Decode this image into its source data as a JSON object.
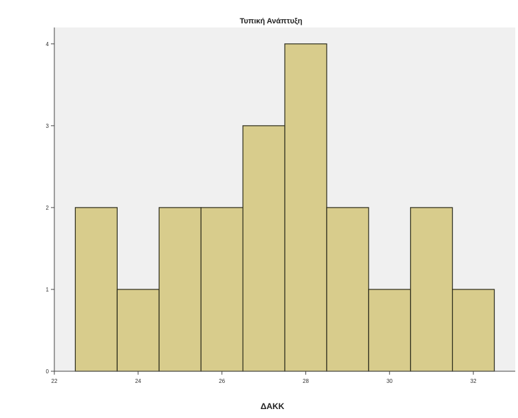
{
  "chart_data": {
    "type": "bar",
    "subtype": "histogram",
    "title": "Τυπική Ανάπτυξη",
    "xlabel": "ΔΑΚΚ",
    "ylabel": "",
    "xlim": [
      22,
      33
    ],
    "ylim": [
      0,
      4.2
    ],
    "x_ticks": [
      22,
      24,
      26,
      28,
      30,
      32
    ],
    "y_ticks": [
      0,
      1,
      2,
      3,
      4
    ],
    "bins": [
      {
        "start": 22.5,
        "end": 23.5,
        "value": 2
      },
      {
        "start": 23.5,
        "end": 24.5,
        "value": 1
      },
      {
        "start": 24.5,
        "end": 25.5,
        "value": 2
      },
      {
        "start": 25.5,
        "end": 26.5,
        "value": 2
      },
      {
        "start": 26.5,
        "end": 27.5,
        "value": 3
      },
      {
        "start": 27.5,
        "end": 28.5,
        "value": 4
      },
      {
        "start": 28.5,
        "end": 29.5,
        "value": 2
      },
      {
        "start": 29.5,
        "end": 30.5,
        "value": 1
      },
      {
        "start": 30.5,
        "end": 31.5,
        "value": 2
      },
      {
        "start": 31.5,
        "end": 32.5,
        "value": 1
      }
    ],
    "grid": false,
    "legend": "none",
    "colors": {
      "bar_fill": "#d8cc8c",
      "bar_stroke": "#2a2a1a",
      "plot_background": "#f0f0f0",
      "axis": "#444444"
    }
  }
}
